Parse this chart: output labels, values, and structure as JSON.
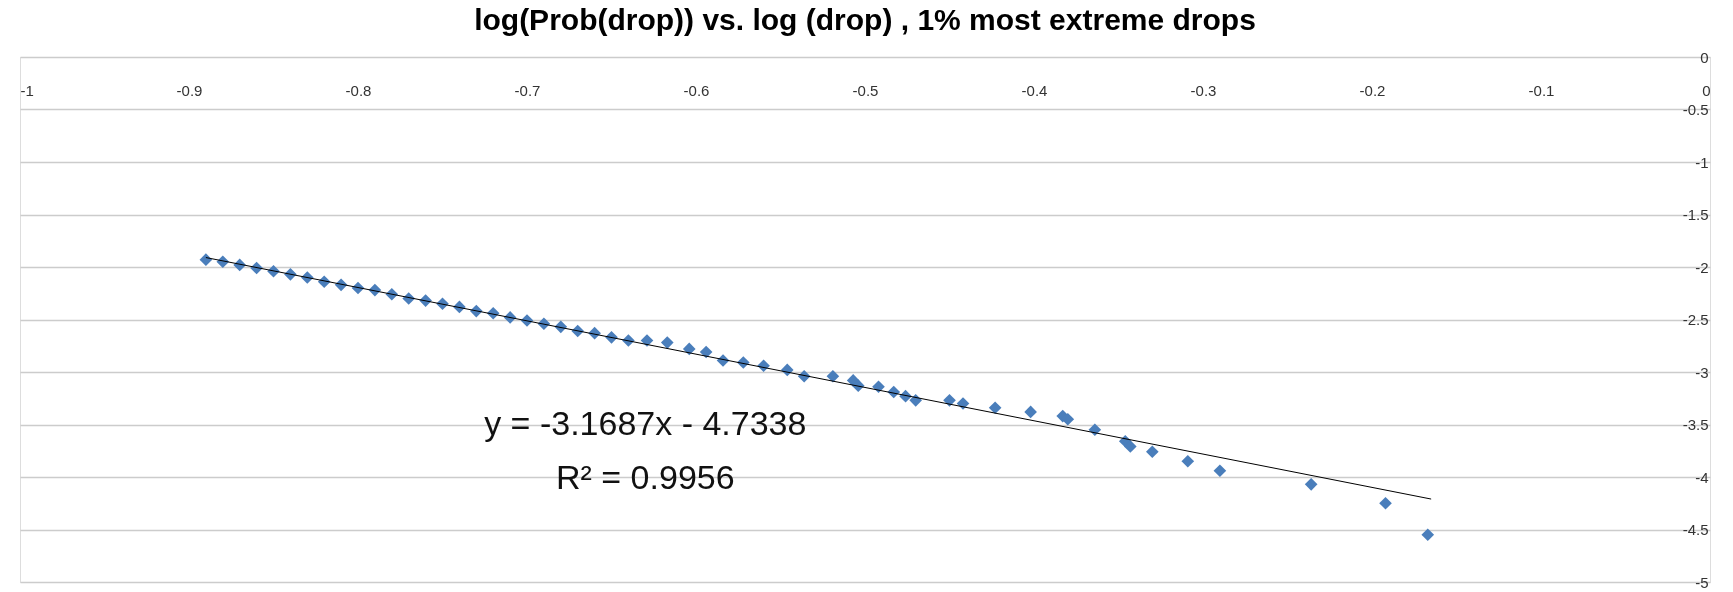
{
  "chart_data": {
    "type": "scatter",
    "title": "log(Prob(drop)) vs. log (drop) , 1% most extreme drops",
    "marker": "diamond",
    "grid": "y",
    "xlim": [
      -1,
      0
    ],
    "xticks": [
      -1,
      -0.9,
      -0.8,
      -0.7,
      -0.6,
      -0.5,
      -0.4,
      -0.3,
      -0.2,
      -0.1,
      0
    ],
    "ylim": [
      -5,
      0
    ],
    "yticks": [
      0,
      -0.5,
      -1,
      -1.5,
      -2,
      -2.5,
      -3,
      -3.5,
      -4,
      -4.5,
      -5
    ],
    "annotations": [
      "y = -3.1687x - 4.7338",
      "R² = 0.9956"
    ],
    "series": [
      {
        "color": "#4a7ebb",
        "x": [
          -0.89,
          -0.88,
          -0.87,
          -0.86,
          -0.85,
          -0.84,
          -0.83,
          -0.82,
          -0.81,
          -0.8,
          -0.79,
          -0.78,
          -0.77,
          -0.76,
          -0.75,
          -0.74,
          -0.73,
          -0.72,
          -0.71,
          -0.7,
          -0.69,
          -0.68,
          -0.67,
          -0.66,
          -0.65,
          -0.64,
          -0.629,
          -0.617,
          -0.604,
          -0.594,
          -0.584,
          -0.572,
          -0.56,
          -0.546,
          -0.536,
          -0.519,
          -0.507,
          -0.504,
          -0.492,
          -0.483,
          -0.476,
          -0.47,
          -0.45,
          -0.442,
          -0.423,
          -0.402,
          -0.383,
          -0.38,
          -0.364,
          -0.346,
          -0.343,
          -0.33,
          -0.309,
          -0.29,
          -0.236,
          -0.192,
          -0.167
        ],
        "values": [
          -1.93,
          -1.95,
          -1.98,
          -2.01,
          -2.04,
          -2.07,
          -2.1,
          -2.14,
          -2.17,
          -2.2,
          -2.22,
          -2.26,
          -2.3,
          -2.32,
          -2.35,
          -2.38,
          -2.42,
          -2.44,
          -2.48,
          -2.51,
          -2.54,
          -2.57,
          -2.61,
          -2.63,
          -2.67,
          -2.7,
          -2.7,
          -2.72,
          -2.78,
          -2.81,
          -2.89,
          -2.91,
          -2.94,
          -2.98,
          -3.04,
          -3.04,
          -3.08,
          -3.13,
          -3.14,
          -3.19,
          -3.23,
          -3.27,
          -3.27,
          -3.3,
          -3.34,
          -3.38,
          -3.42,
          -3.45,
          -3.55,
          -3.66,
          -3.71,
          -3.76,
          -3.85,
          -3.94,
          -4.07,
          -4.25,
          -4.55
        ]
      },
      {
        "type": "line",
        "color": "#000000",
        "marker": "none",
        "line_style": "solid",
        "x": [
          -0.89,
          -0.165
        ],
        "values": [
          -1.91,
          -4.21
        ]
      }
    ]
  }
}
